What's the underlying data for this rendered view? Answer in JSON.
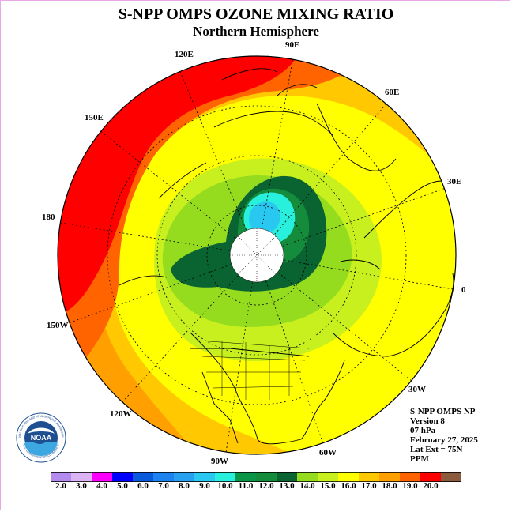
{
  "header": {
    "title": "S-NPP OMPS OZONE MIXING RATIO",
    "subtitle": "Northern Hemisphere"
  },
  "longitude_labels": {
    "lon_90e": "90E",
    "lon_60e": "60E",
    "lon_30e": "30E",
    "lon_0": "0",
    "lon_30w": "30W",
    "lon_60w": "60W",
    "lon_90w": "90W",
    "lon_120w": "120W",
    "lon_150w": "150W",
    "lon_180": "180",
    "lon_150e": "150E",
    "lon_120e": "120E"
  },
  "info": {
    "instrument": "S-NPP OMPS NP",
    "version": "Version 8",
    "pressure": "07 hPa",
    "date": "February 27, 2025",
    "lat_ext": "Lat Ext = 75N",
    "units": "PPM"
  },
  "logo": {
    "text": "NOAA",
    "ring_text": "NATIONAL OCEANIC AND ATMOSPHERIC ADMINISTRATION",
    "ring_text_bottom": "U.S. DEPARTMENT OF COMMERCE"
  },
  "colorbar": {
    "labels": [
      "2.0",
      "3.0",
      "4.0",
      "5.0",
      "6.0",
      "7.0",
      "8.0",
      "9.0",
      "10.0",
      "11.0",
      "12.0",
      "13.0",
      "14.0",
      "15.0",
      "16.0",
      "17.0",
      "18.0",
      "19.0",
      "20.0"
    ],
    "colors": [
      "#b48cf0",
      "#dcb4f5",
      "#ff00ff",
      "#0000ff",
      "#0a5adc",
      "#1e82f0",
      "#28a0f0",
      "#28c8f0",
      "#28f0dc",
      "#0a9646",
      "#148c3c",
      "#0a6432",
      "#96dc1e",
      "#c8f01e",
      "#ffff00",
      "#ffc800",
      "#ffa000",
      "#ff6400",
      "#ff0000",
      "#8c5a3c"
    ]
  },
  "map_colors": {
    "background_ocean": "#ffff00",
    "missing_pole": "#ffffff"
  }
}
